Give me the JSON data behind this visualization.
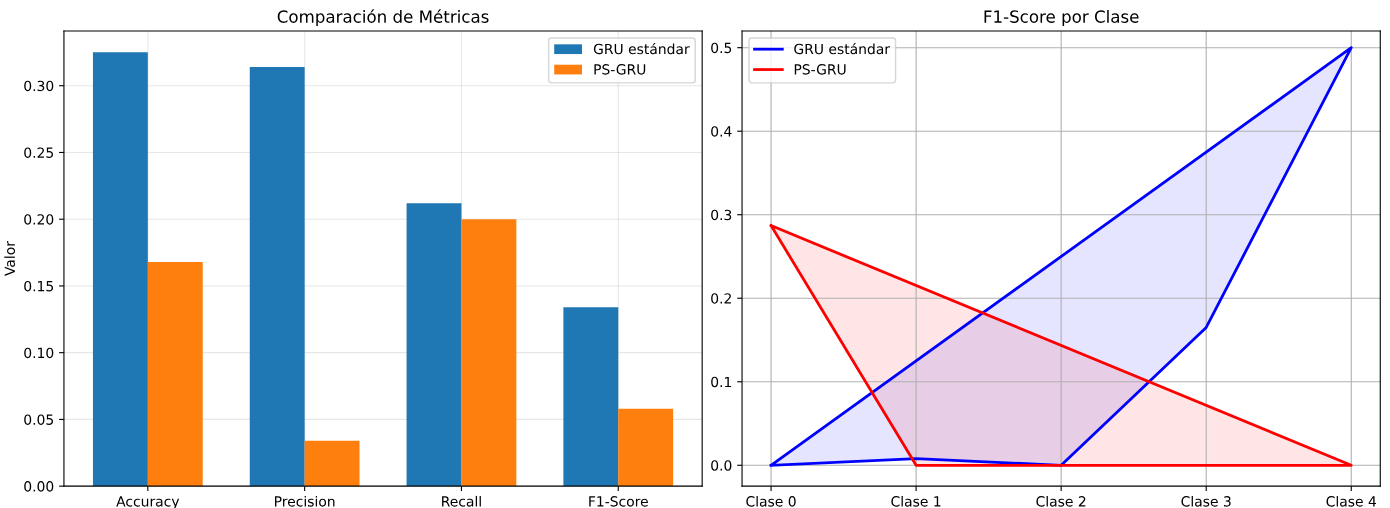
{
  "chart_data": [
    {
      "type": "bar",
      "title": "Comparación de Métricas",
      "ylabel": "Valor",
      "categories": [
        "Accuracy",
        "Precision",
        "Recall",
        "F1-Score"
      ],
      "series": [
        {
          "name": "GRU estándar",
          "color": "#1f77b4",
          "values": [
            0.325,
            0.314,
            0.212,
            0.134
          ]
        },
        {
          "name": "PS-GRU",
          "color": "#ff7f0e",
          "values": [
            0.168,
            0.034,
            0.2,
            0.058
          ]
        }
      ],
      "ylim": [
        0,
        0.341
      ],
      "yticks": [
        {
          "value": 0,
          "label": "0.00"
        },
        {
          "value": 0.05,
          "label": "0.05"
        },
        {
          "value": 0.1,
          "label": "0.10"
        },
        {
          "value": 0.15,
          "label": "0.15"
        },
        {
          "value": 0.2,
          "label": "0.20"
        },
        {
          "value": 0.25,
          "label": "0.25"
        },
        {
          "value": 0.3,
          "label": "0.30"
        }
      ],
      "grid": true,
      "legend": "top right"
    },
    {
      "type": "area",
      "title": "F1-Score por Clase",
      "categories": [
        "Clase 0",
        "Clase 1",
        "Clase 2",
        "Clase 3",
        "Clase 4"
      ],
      "series": [
        {
          "name": "GRU estándar",
          "color": "#0000ff",
          "values": [
            0,
            0.008,
            0,
            0.165,
            0.5
          ]
        },
        {
          "name": "PS-GRU",
          "color": "#ff0000",
          "values": [
            0.287,
            0,
            0,
            0,
            0
          ]
        }
      ],
      "ylim": [
        -0.025,
        0.52
      ],
      "yticks": [
        {
          "value": 0,
          "label": "0.0"
        },
        {
          "value": 0.1,
          "label": "0.1"
        },
        {
          "value": 0.2,
          "label": "0.2"
        },
        {
          "value": 0.3,
          "label": "0.3"
        },
        {
          "value": 0.4,
          "label": "0.4"
        },
        {
          "value": 0.5,
          "label": "0.5"
        }
      ],
      "grid": true,
      "legend": "top left"
    }
  ]
}
